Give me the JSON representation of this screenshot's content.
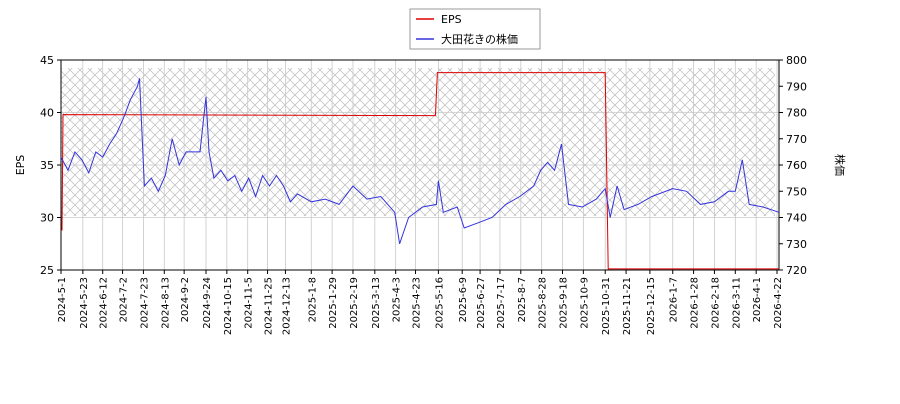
{
  "chart_data": {
    "type": "line",
    "xlim": [
      "2024-5-1",
      "2026-4-24"
    ],
    "xticks": [
      "2024-5-1",
      "2024-5-23",
      "2024-6-12",
      "2024-7-2",
      "2024-7-23",
      "2024-8-13",
      "2024-9-2",
      "2024-9-24",
      "2024-10-15",
      "2024-11-5",
      "2024-11-25",
      "2024-12-13",
      "2025-1-8",
      "2025-1-29",
      "2025-2-19",
      "2025-3-13",
      "2025-4-3",
      "2025-4-23",
      "2025-5-16",
      "2025-6-9",
      "2025-6-27",
      "2025-7-17",
      "2025-8-7",
      "2025-8-28",
      "2025-9-18",
      "2025-10-9",
      "2025-10-31",
      "2025-11-21",
      "2025-12-15",
      "2026-1-7",
      "2026-1-28",
      "2026-2-18",
      "2026-3-11",
      "2026-4-1",
      "2026-4-22"
    ],
    "ylabel": "EPS",
    "y2label": "株価",
    "ylim": [
      25,
      45
    ],
    "yticks": [
      25,
      30,
      35,
      40,
      45
    ],
    "y2lim": [
      720,
      800
    ],
    "y2ticks": [
      720,
      730,
      740,
      750,
      760,
      770,
      780,
      790,
      800
    ],
    "grid": true,
    "legend": "top",
    "series": [
      {
        "name": "EPS",
        "color": "#dd0000",
        "x": [
          "2024-5-1",
          "2024-5-2",
          "2024-5-3",
          "2025-5-13",
          "2025-5-15",
          "2025-10-31",
          "2025-11-3",
          "2026-4-24"
        ],
        "values": [
          28.8,
          28.8,
          39.8,
          39.7,
          43.8,
          43.8,
          25.1,
          25.1
        ]
      },
      {
        "name": "大田花きの株価",
        "color": "#3333dd",
        "axis": "y2",
        "x": [
          "2024-5-1",
          "2024-5-8",
          "2024-5-15",
          "2024-5-22",
          "2024-5-29",
          "2024-6-5",
          "2024-6-12",
          "2024-6-19",
          "2024-6-26",
          "2024-7-3",
          "2024-7-10",
          "2024-7-17",
          "2024-7-19",
          "2024-7-24",
          "2024-7-31",
          "2024-8-7",
          "2024-8-14",
          "2024-8-21",
          "2024-8-28",
          "2024-9-4",
          "2024-9-11",
          "2024-9-18",
          "2024-9-24",
          "2024-9-27",
          "2024-10-2",
          "2024-10-9",
          "2024-10-16",
          "2024-10-23",
          "2024-10-30",
          "2024-11-6",
          "2024-11-13",
          "2024-11-20",
          "2024-11-27",
          "2024-12-4",
          "2024-12-11",
          "2024-12-18",
          "2024-12-25",
          "2025-1-8",
          "2025-1-22",
          "2025-2-5",
          "2025-2-19",
          "2025-3-5",
          "2025-3-19",
          "2025-4-2",
          "2025-4-7",
          "2025-4-16",
          "2025-4-30",
          "2025-5-14",
          "2025-5-16",
          "2025-5-21",
          "2025-6-4",
          "2025-6-11",
          "2025-6-25",
          "2025-7-9",
          "2025-7-23",
          "2025-8-6",
          "2025-8-20",
          "2025-8-27",
          "2025-9-3",
          "2025-9-10",
          "2025-9-17",
          "2025-9-24",
          "2025-10-8",
          "2025-10-22",
          "2025-10-31",
          "2025-11-5",
          "2025-11-12",
          "2025-11-19",
          "2025-12-3",
          "2025-12-17",
          "2026-1-7",
          "2026-1-21",
          "2026-2-4",
          "2026-2-18",
          "2026-3-4",
          "2026-3-11",
          "2026-3-18",
          "2026-3-25",
          "2026-4-8",
          "2026-4-24"
        ],
        "values": [
          763,
          758,
          765,
          762,
          757,
          765,
          763,
          768,
          772,
          778,
          785,
          790,
          793,
          752,
          755,
          750,
          756,
          770,
          760,
          765,
          765,
          765,
          786,
          765,
          755,
          758,
          754,
          756,
          750,
          755,
          748,
          756,
          752,
          756,
          752,
          746,
          749,
          746,
          747,
          745,
          752,
          747,
          748,
          742,
          730,
          740,
          744,
          745,
          754,
          742,
          744,
          736,
          738,
          740,
          745,
          748,
          752,
          758,
          761,
          758,
          768,
          745,
          744,
          747,
          751,
          740,
          752,
          743,
          745,
          748,
          751,
          750,
          745,
          746,
          750,
          750,
          762,
          745,
          744,
          742
        ]
      }
    ]
  }
}
